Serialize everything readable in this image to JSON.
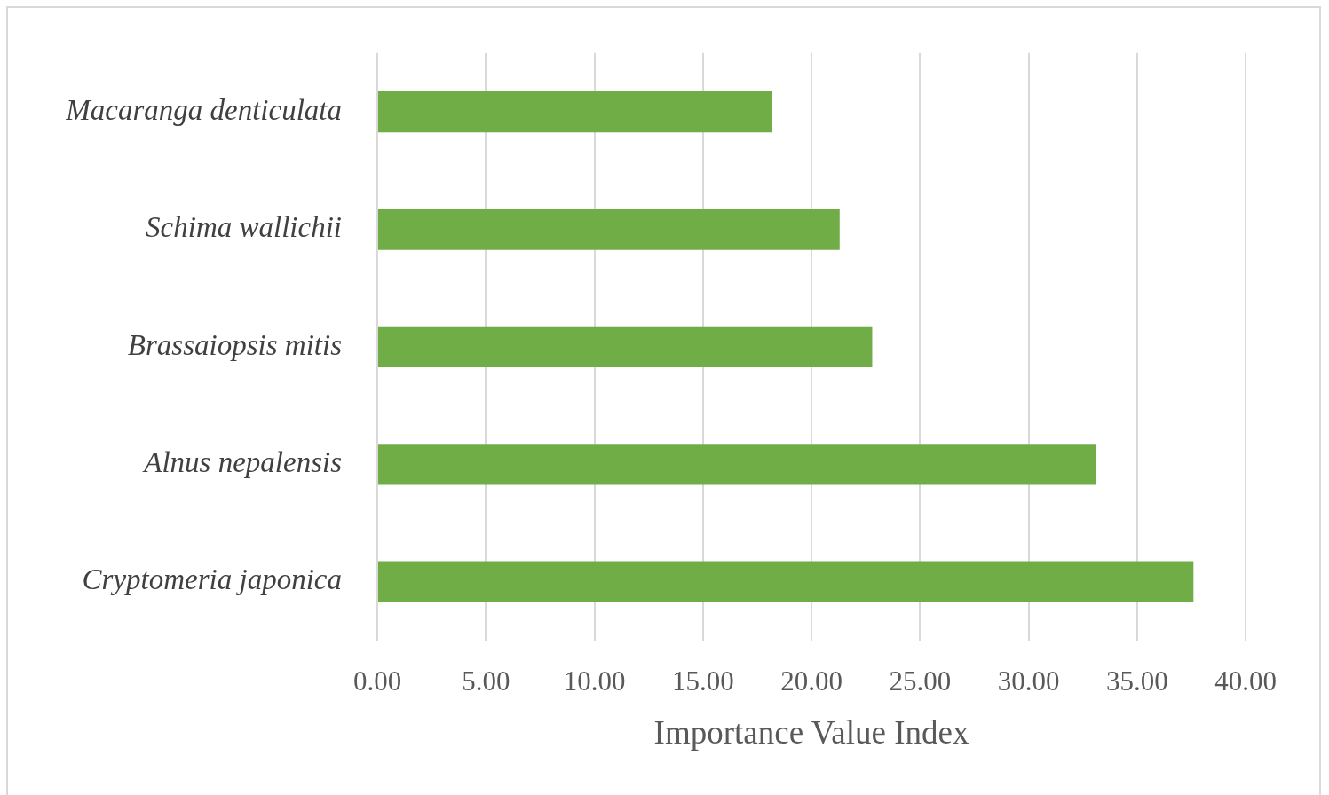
{
  "chart_data": {
    "type": "bar",
    "orientation": "horizontal",
    "xlabel": "Importance Value Index",
    "categories": [
      "Macaranga denticulata",
      "Schima wallichii",
      "Brassaiopsis mitis",
      "Alnus nepalensis",
      "Cryptomeria japonica"
    ],
    "values": [
      18.2,
      21.3,
      22.8,
      33.1,
      37.6
    ],
    "color": "#70ad47",
    "xlim": [
      0,
      40
    ],
    "xticks": [
      {
        "value": 0,
        "label": "0.00"
      },
      {
        "value": 5,
        "label": "5.00"
      },
      {
        "value": 10,
        "label": "10.00"
      },
      {
        "value": 15,
        "label": "15.00"
      },
      {
        "value": 20,
        "label": "20.00"
      },
      {
        "value": 25,
        "label": "25.00"
      },
      {
        "value": 30,
        "label": "30.00"
      },
      {
        "value": 35,
        "label": "35.00"
      },
      {
        "value": 40,
        "label": "40.00"
      }
    ],
    "grid": "x"
  }
}
